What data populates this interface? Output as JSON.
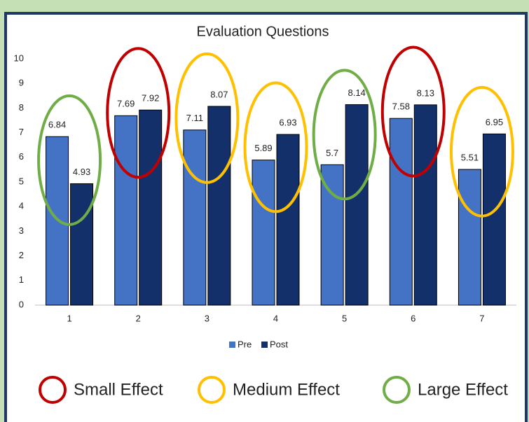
{
  "chart_data": {
    "type": "bar",
    "title": "Evaluation Questions",
    "categories": [
      "1",
      "2",
      "3",
      "4",
      "5",
      "6",
      "7"
    ],
    "series": [
      {
        "name": "Pre",
        "color": "#4472c4",
        "values": [
          6.84,
          7.69,
          7.11,
          5.89,
          5.7,
          7.58,
          5.51
        ]
      },
      {
        "name": "Post",
        "color": "#13306b",
        "values": [
          4.93,
          7.92,
          8.07,
          6.93,
          8.14,
          8.13,
          6.95
        ]
      }
    ],
    "ylim": [
      0,
      10
    ],
    "yticks": [
      0,
      1,
      2,
      3,
      4,
      5,
      6,
      7,
      8,
      9,
      10
    ],
    "grid": false,
    "legend": "bottom",
    "effect_groups": [
      {
        "name": "Small Effect",
        "color": "#c00000",
        "categories": [
          "2",
          "6"
        ]
      },
      {
        "name": "Medium Effect",
        "color": "#ffc000",
        "categories": [
          "3",
          "4",
          "7"
        ]
      },
      {
        "name": "Large Effect",
        "color": "#70ad47",
        "categories": [
          "1",
          "5"
        ]
      }
    ]
  }
}
